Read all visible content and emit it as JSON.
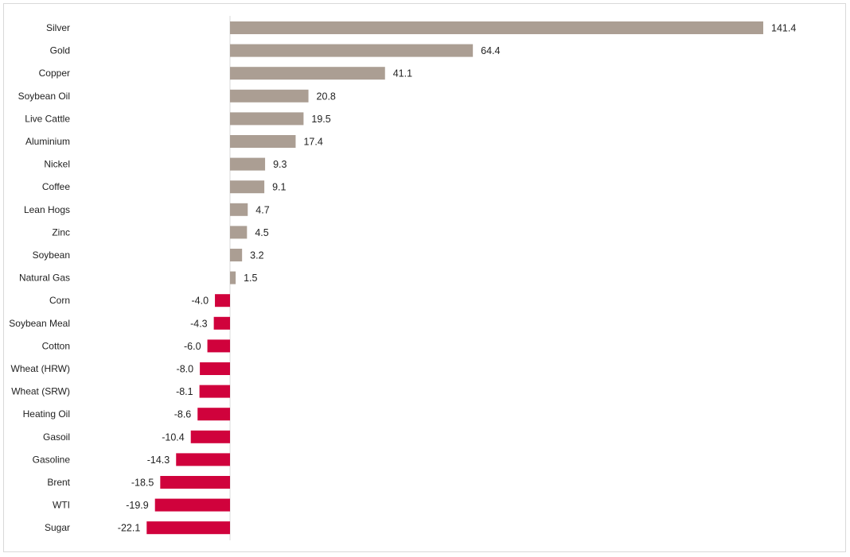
{
  "chart_data": {
    "type": "bar",
    "orientation": "horizontal",
    "categories": [
      "Silver",
      "Gold",
      "Copper",
      "Soybean Oil",
      "Live Cattle",
      "Aluminium",
      "Nickel",
      "Coffee",
      "Lean Hogs",
      "Zinc",
      "Soybean",
      "Natural Gas",
      "Corn",
      "Soybean Meal",
      "Cotton",
      "Wheat (HRW)",
      "Wheat (SRW)",
      "Heating Oil",
      "Gasoil",
      "Gasoline",
      "Brent",
      "WTI",
      "Sugar"
    ],
    "values": [
      141.4,
      64.4,
      41.1,
      20.8,
      19.5,
      17.4,
      9.3,
      9.1,
      4.7,
      4.5,
      3.2,
      1.5,
      -4.0,
      -4.3,
      -6.0,
      -8.0,
      -8.1,
      -8.6,
      -10.4,
      -14.3,
      -18.5,
      -19.9,
      -22.1
    ],
    "value_labels": [
      "141.4",
      "64.4",
      "41.1",
      "20.8",
      "19.5",
      "17.4",
      "9.3",
      "9.1",
      "4.7",
      "4.5",
      "3.2",
      "1.5",
      "-4.0",
      "-4.3",
      "-6.0",
      "-8.0",
      "-8.1",
      "-8.6",
      "-10.4",
      "-14.3",
      "-18.5",
      "-19.9",
      "-22.1"
    ],
    "colors": {
      "positive": "#ab9e93",
      "negative": "#d0023c",
      "axis": "#d9d9d9"
    },
    "grid": false,
    "legend": false
  }
}
